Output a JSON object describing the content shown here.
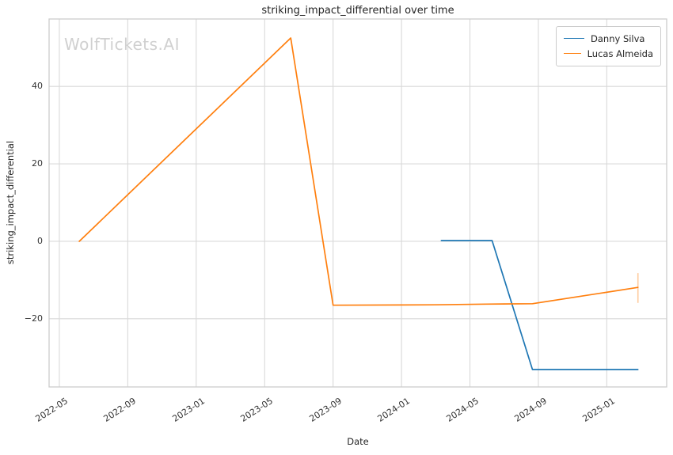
{
  "chart_data": {
    "type": "line",
    "title": "striking_impact_differential over time",
    "xlabel": "Date",
    "ylabel": "striking_impact_differential",
    "watermark": "WolfTickets.AI",
    "grid": true,
    "legend_position": "upper right",
    "x_ticks": [
      "2022-05",
      "2022-09",
      "2023-01",
      "2023-05",
      "2023-09",
      "2024-01",
      "2024-05",
      "2024-09",
      "2025-01"
    ],
    "y_ticks": [
      40,
      20,
      0,
      -20
    ],
    "ylim": [
      -37.6,
      57.4
    ],
    "xlim_months_offset_from_2022_05": [
      -0.6,
      35.5
    ],
    "colors": {
      "grid": "#d9d9d9",
      "spine": "#cccccc",
      "tick_text": "#333333",
      "watermark": "#d0d0d0"
    },
    "series": [
      {
        "name": "Danny Silva",
        "color": "#1f77b4",
        "points": [
          {
            "date": "2024-03-11",
            "value": 0.2
          },
          {
            "date": "2024-06-10",
            "value": 0.2
          },
          {
            "date": "2024-08-21",
            "value": -33.1
          },
          {
            "date": "2025-02-26",
            "value": -33.1
          }
        ]
      },
      {
        "name": "Lucas Almeida",
        "color": "#ff7f0e",
        "points": [
          {
            "date": "2022-06-06",
            "value": 0.0
          },
          {
            "date": "2023-06-17",
            "value": 52.5
          },
          {
            "date": "2023-09-01",
            "value": -16.5
          },
          {
            "date": "2024-03-01",
            "value": -16.4
          },
          {
            "date": "2024-06-01",
            "value": -16.2
          },
          {
            "date": "2024-08-21",
            "value": -16.1
          },
          {
            "date": "2025-02-26",
            "value": -11.9
          }
        ],
        "error_bar": {
          "date": "2025-02-26",
          "low": -15.9,
          "high": -8.2
        }
      }
    ]
  }
}
